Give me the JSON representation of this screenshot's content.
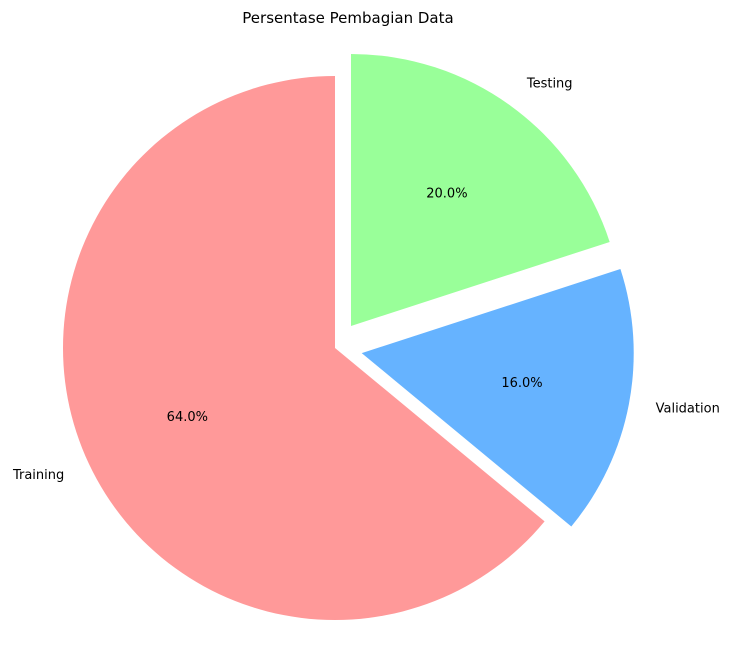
{
  "chart_data": {
    "type": "pie",
    "title": "Persentase Pembagian Data",
    "labels": [
      "Training",
      "Validation",
      "Testing"
    ],
    "values": [
      64.0,
      16.0,
      20.0
    ],
    "percent_labels": [
      "64.0%",
      "16.0%",
      "20.0%"
    ],
    "colors": [
      "#ff9999",
      "#66b3ff",
      "#99ff99"
    ],
    "explode": [
      0.0,
      0.1,
      0.1
    ],
    "start_angle_deg": 90,
    "direction": "counterclockwise",
    "legend": "none"
  }
}
